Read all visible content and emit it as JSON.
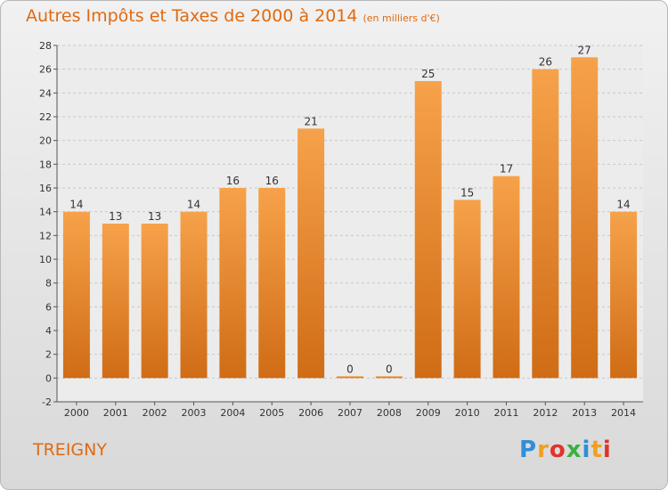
{
  "header": {
    "title": "Autres Impôts et Taxes de 2000 à 2014",
    "subtitle": "(en milliers d'€)"
  },
  "footer": {
    "location": "TREIGNY",
    "brand": "Proxiti",
    "brand_colors": [
      "#2f8fd8",
      "#f0a020",
      "#e0342a",
      "#3cb043",
      "#2f8fd8",
      "#f0a020",
      "#e0342a"
    ]
  },
  "chart_data": {
    "type": "bar",
    "title": "Autres Impôts et Taxes de 2000 à 2014",
    "subtitle": "(en milliers d'€)",
    "categories": [
      "2000",
      "2001",
      "2002",
      "2003",
      "2004",
      "2005",
      "2006",
      "2007",
      "2008",
      "2009",
      "2010",
      "2011",
      "2012",
      "2013",
      "2014"
    ],
    "values": [
      14,
      13,
      13,
      14,
      16,
      16,
      21,
      0,
      0,
      25,
      15,
      17,
      26,
      27,
      14
    ],
    "ylim": [
      -2,
      28
    ],
    "yticks": [
      -2,
      0,
      2,
      4,
      6,
      8,
      10,
      12,
      14,
      16,
      18,
      20,
      22,
      24,
      26,
      28
    ],
    "grid": true,
    "bar_color": "#f0922c",
    "bar_color_dark": "#d06a14"
  }
}
